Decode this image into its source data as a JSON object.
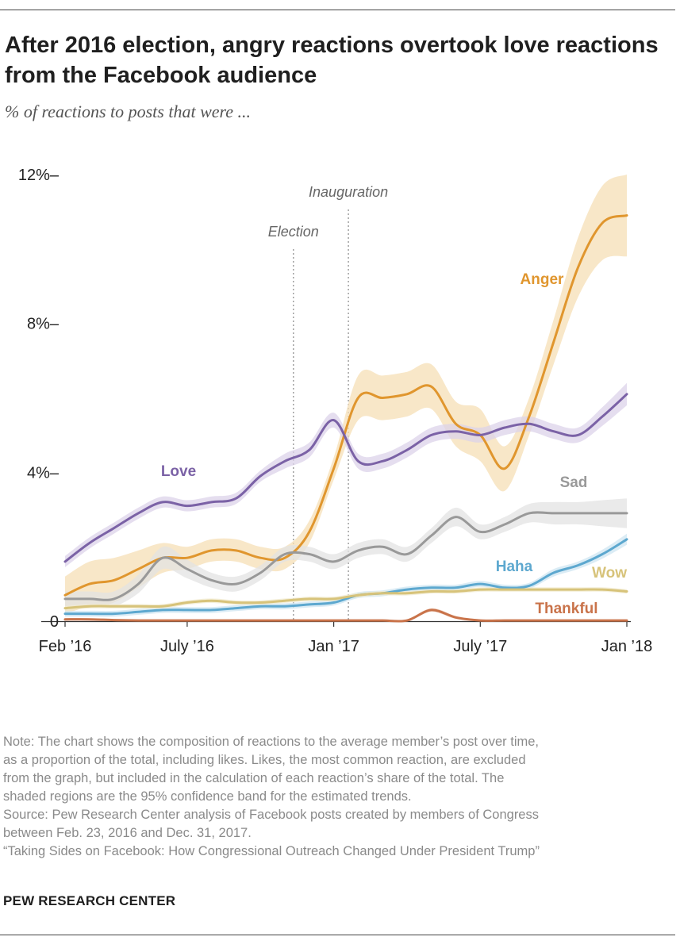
{
  "title": "After 2016 election, angry reactions overtook love reactions from the Facebook audience",
  "subtitle": "% of reactions to posts that were ...",
  "note_lines": [
    "Note: The chart shows the composition of reactions to the average member’s post over time,",
    "as a proportion of the total, including likes. Likes, the most common reaction, are excluded",
    "from the graph, but included in the calculation of each reaction’s share of the total. The",
    "shaded regions are the 95% confidence band for the estimated trends."
  ],
  "source_lines": [
    "Source: Pew Research Center analysis of Facebook posts created by members of Congress",
    "between Feb. 23, 2016 and Dec. 31, 2017."
  ],
  "report_title": "“Taking Sides on Facebook: How Congressional Outreach Changed Under President Trump”",
  "brand": "PEW RESEARCH CENTER",
  "chart_data": {
    "type": "line",
    "x_unit": "month",
    "x_range": [
      "2016-02",
      "2018-01"
    ],
    "x_ticks": [
      {
        "x": "2016-02",
        "label": "Feb ’16"
      },
      {
        "x": "2016-07",
        "label": "July ’16"
      },
      {
        "x": "2017-01",
        "label": "Jan ’17"
      },
      {
        "x": "2017-07",
        "label": "July ’17"
      },
      {
        "x": "2018-01",
        "label": "Jan ’18"
      }
    ],
    "y_ticks": [
      {
        "value": 0,
        "label": "0"
      },
      {
        "value": 4,
        "label": "4%–"
      },
      {
        "value": 8,
        "label": "8%–"
      },
      {
        "value": 12,
        "label": "12%–"
      }
    ],
    "ylim": [
      0,
      12
    ],
    "events": [
      {
        "label": "Election",
        "x": "2016-11"
      },
      {
        "label": "Inauguration",
        "x": "2017-01"
      }
    ],
    "band": "95% confidence band",
    "series": [
      {
        "name": "Anger",
        "color": "#e0962e",
        "band_color": "#f6dfb6",
        "x": [
          "2016-02",
          "2016-03",
          "2016-04",
          "2016-05",
          "2016-06",
          "2016-07",
          "2016-08",
          "2016-09",
          "2016-10",
          "2016-11",
          "2016-12",
          "2017-01",
          "2017-02",
          "2017-03",
          "2017-04",
          "2017-05",
          "2017-06",
          "2017-07",
          "2017-08",
          "2017-09",
          "2017-10",
          "2017-11",
          "2017-12",
          "2018-01"
        ],
        "y": [
          0.7,
          1.0,
          1.1,
          1.4,
          1.7,
          1.7,
          1.9,
          1.9,
          1.7,
          1.7,
          2.4,
          4.1,
          6.0,
          6.0,
          6.1,
          6.3,
          5.3,
          5.0,
          4.1,
          5.5,
          7.5,
          9.5,
          10.7,
          10.9
        ],
        "band_half": [
          0.5,
          0.6,
          0.6,
          0.5,
          0.4,
          0.3,
          0.3,
          0.3,
          0.3,
          0.3,
          0.3,
          0.3,
          0.6,
          0.6,
          0.6,
          0.6,
          0.6,
          0.7,
          0.6,
          0.5,
          0.6,
          0.8,
          1.0,
          1.1
        ]
      },
      {
        "name": "Love",
        "color": "#7b62a6",
        "band_color": "#dcd3ea",
        "x": [
          "2016-02",
          "2016-03",
          "2016-04",
          "2016-05",
          "2016-06",
          "2016-07",
          "2016-08",
          "2016-09",
          "2016-10",
          "2016-11",
          "2016-12",
          "2017-01",
          "2017-02",
          "2017-03",
          "2017-04",
          "2017-05",
          "2017-06",
          "2017-07",
          "2017-08",
          "2017-09",
          "2017-10",
          "2017-11",
          "2017-12",
          "2018-01"
        ],
        "y": [
          1.6,
          2.1,
          2.5,
          2.9,
          3.2,
          3.1,
          3.2,
          3.3,
          3.9,
          4.3,
          4.6,
          5.4,
          4.3,
          4.3,
          4.6,
          5.0,
          5.1,
          5.0,
          5.2,
          5.3,
          5.1,
          5.0,
          5.5,
          6.1
        ],
        "band_half": [
          0.15,
          0.15,
          0.15,
          0.15,
          0.15,
          0.15,
          0.15,
          0.15,
          0.15,
          0.2,
          0.2,
          0.2,
          0.2,
          0.2,
          0.2,
          0.2,
          0.2,
          0.2,
          0.2,
          0.2,
          0.2,
          0.2,
          0.25,
          0.3
        ]
      },
      {
        "name": "Sad",
        "color": "#999999",
        "band_color": "#e3e3e3",
        "x": [
          "2016-02",
          "2016-03",
          "2016-04",
          "2016-05",
          "2016-06",
          "2016-07",
          "2016-08",
          "2016-09",
          "2016-10",
          "2016-11",
          "2016-12",
          "2017-01",
          "2017-02",
          "2017-03",
          "2017-04",
          "2017-05",
          "2017-06",
          "2017-07",
          "2017-08",
          "2017-09",
          "2017-10",
          "2017-11",
          "2017-12",
          "2018-01"
        ],
        "y": [
          0.6,
          0.6,
          0.6,
          1.0,
          1.7,
          1.4,
          1.1,
          1.0,
          1.3,
          1.8,
          1.8,
          1.6,
          1.9,
          2.0,
          1.8,
          2.3,
          2.8,
          2.4,
          2.6,
          2.9,
          2.9,
          2.9,
          2.9,
          2.9
        ],
        "band_half": [
          0.2,
          0.2,
          0.2,
          0.25,
          0.3,
          0.25,
          0.2,
          0.2,
          0.2,
          0.2,
          0.2,
          0.2,
          0.2,
          0.2,
          0.2,
          0.2,
          0.25,
          0.2,
          0.2,
          0.25,
          0.3,
          0.3,
          0.35,
          0.4
        ]
      },
      {
        "name": "Haha",
        "color": "#5da8cf",
        "band_color": "#cfe5f1",
        "x": [
          "2016-02",
          "2016-03",
          "2016-04",
          "2016-05",
          "2016-06",
          "2016-07",
          "2016-08",
          "2016-09",
          "2016-10",
          "2016-11",
          "2016-12",
          "2017-01",
          "2017-02",
          "2017-03",
          "2017-04",
          "2017-05",
          "2017-06",
          "2017-07",
          "2017-08",
          "2017-09",
          "2017-10",
          "2017-11",
          "2017-12",
          "2018-01"
        ],
        "y": [
          0.2,
          0.2,
          0.2,
          0.25,
          0.3,
          0.3,
          0.3,
          0.35,
          0.4,
          0.4,
          0.45,
          0.5,
          0.7,
          0.75,
          0.85,
          0.9,
          0.9,
          1.0,
          0.9,
          0.95,
          1.3,
          1.5,
          1.8,
          2.2
        ],
        "band_half": [
          0.08,
          0.08,
          0.08,
          0.08,
          0.08,
          0.08,
          0.08,
          0.08,
          0.08,
          0.08,
          0.08,
          0.08,
          0.08,
          0.08,
          0.08,
          0.08,
          0.08,
          0.08,
          0.08,
          0.08,
          0.1,
          0.1,
          0.12,
          0.15
        ]
      },
      {
        "name": "Wow",
        "color": "#d7c37a",
        "band_color": "#f1ebd0",
        "x": [
          "2016-02",
          "2016-03",
          "2016-04",
          "2016-05",
          "2016-06",
          "2016-07",
          "2016-08",
          "2016-09",
          "2016-10",
          "2016-11",
          "2016-12",
          "2017-01",
          "2017-02",
          "2017-03",
          "2017-04",
          "2017-05",
          "2017-06",
          "2017-07",
          "2017-08",
          "2017-09",
          "2017-10",
          "2017-11",
          "2017-12",
          "2018-01"
        ],
        "y": [
          0.35,
          0.4,
          0.4,
          0.4,
          0.4,
          0.5,
          0.55,
          0.5,
          0.5,
          0.55,
          0.6,
          0.6,
          0.7,
          0.75,
          0.75,
          0.8,
          0.8,
          0.85,
          0.85,
          0.85,
          0.85,
          0.85,
          0.85,
          0.8
        ],
        "band_half": [
          0.06,
          0.06,
          0.06,
          0.06,
          0.06,
          0.06,
          0.06,
          0.06,
          0.06,
          0.06,
          0.06,
          0.06,
          0.06,
          0.06,
          0.06,
          0.06,
          0.06,
          0.06,
          0.06,
          0.06,
          0.06,
          0.06,
          0.06,
          0.06
        ]
      },
      {
        "name": "Thankful",
        "color": "#c9734a",
        "band_color": "#efd3c3",
        "x": [
          "2016-02",
          "2016-03",
          "2016-04",
          "2016-05",
          "2016-06",
          "2016-07",
          "2016-08",
          "2016-09",
          "2016-10",
          "2016-11",
          "2016-12",
          "2017-01",
          "2017-02",
          "2017-03",
          "2017-04",
          "2017-05",
          "2017-06",
          "2017-07",
          "2017-08",
          "2017-09",
          "2017-10",
          "2017-11",
          "2017-12",
          "2018-01"
        ],
        "y": [
          0.05,
          0.05,
          0.03,
          0.02,
          0.02,
          0.02,
          0.02,
          0.02,
          0.02,
          0.02,
          0.02,
          0.02,
          0.02,
          0.02,
          0.02,
          0.3,
          0.1,
          0.02,
          0.02,
          0.02,
          0.02,
          0.02,
          0.02,
          0.02
        ],
        "band_half": [
          0.03,
          0.03,
          0.03,
          0.03,
          0.03,
          0.03,
          0.03,
          0.03,
          0.03,
          0.03,
          0.03,
          0.03,
          0.03,
          0.03,
          0.03,
          0.05,
          0.04,
          0.03,
          0.03,
          0.03,
          0.03,
          0.03,
          0.03,
          0.03
        ]
      }
    ]
  }
}
